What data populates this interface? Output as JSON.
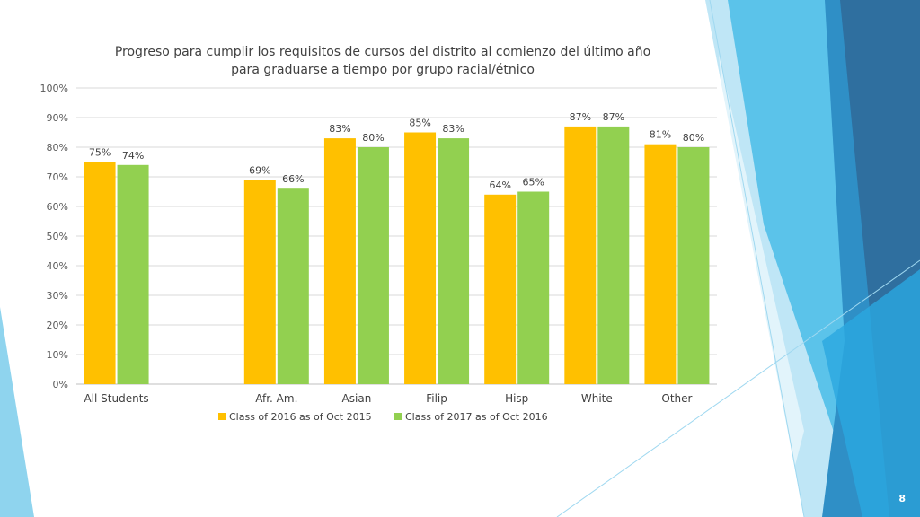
{
  "slide": {
    "number": "8"
  },
  "chart_data": {
    "type": "bar",
    "title_lines": [
      "Progreso para cumplir los requisitos de cursos del distrito al comienzo del último año",
      "para graduarse a tiempo por grupo racial/étnico"
    ],
    "categories": [
      "All Students",
      "",
      "Afr. Am.",
      "Asian",
      "Filip",
      "Hisp",
      "White",
      "Other"
    ],
    "series": [
      {
        "name": "Class of 2016 as of Oct 2015",
        "color": "#FFC000",
        "values": [
          75,
          null,
          69,
          83,
          85,
          64,
          87,
          81
        ],
        "labels": [
          "75%",
          "",
          "69%",
          "83%",
          "85%",
          "64%",
          "87%",
          "81%"
        ]
      },
      {
        "name": "Class of 2017 as of Oct 2016",
        "color": "#92D050",
        "values": [
          74,
          null,
          66,
          80,
          83,
          65,
          87,
          80
        ],
        "labels": [
          "74%",
          "",
          "66%",
          "80%",
          "83%",
          "65%",
          "87%",
          "80%"
        ]
      }
    ],
    "yticks": [
      "0%",
      "10%",
      "20%",
      "30%",
      "40%",
      "50%",
      "60%",
      "70%",
      "80%",
      "90%",
      "100%"
    ],
    "ylim": [
      0,
      100
    ],
    "grid": true,
    "legend": "bottom",
    "xlabel": "",
    "ylabel": ""
  }
}
